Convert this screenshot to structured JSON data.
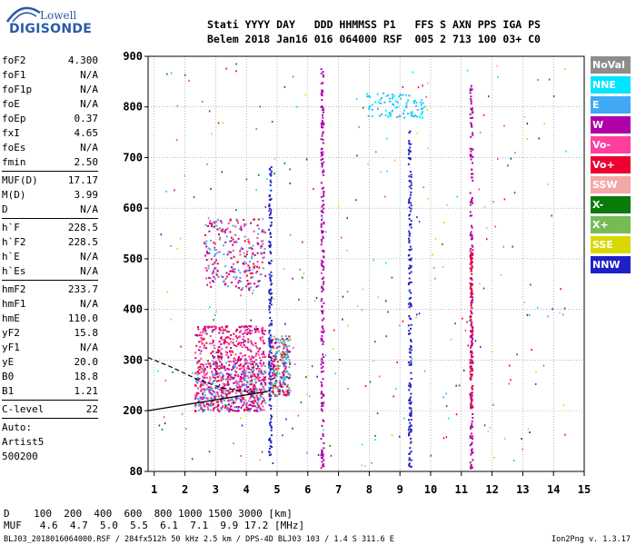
{
  "logo": {
    "lowell": "Lowell",
    "digisonde": "DIGISONDE"
  },
  "header": {
    "line1": "Stati YYYY DAY   DDD HHMMSS P1   FFS S AXN PPS IGA PS",
    "line2": "Belem 2018 Jan16 016 064000 RSF  005 2 713 100 03+ C0"
  },
  "params_group1": [
    {
      "label": "foF2",
      "value": "4.300"
    },
    {
      "label": "foF1",
      "value": "N/A"
    },
    {
      "label": "foF1p",
      "value": "N/A"
    },
    {
      "label": "foE",
      "value": "N/A"
    },
    {
      "label": "foEp",
      "value": "0.37"
    },
    {
      "label": "fxI",
      "value": "4.65"
    },
    {
      "label": "foEs",
      "value": "N/A"
    },
    {
      "label": "fmin",
      "value": "2.50"
    }
  ],
  "params_group2": [
    {
      "label": "MUF(D)",
      "value": "17.17"
    },
    {
      "label": "M(D)",
      "value": "3.99"
    },
    {
      "label": "D",
      "value": "N/A"
    }
  ],
  "params_group3": [
    {
      "label": "h`F",
      "value": "228.5"
    },
    {
      "label": "h`F2",
      "value": "228.5"
    },
    {
      "label": "h`E",
      "value": "N/A"
    },
    {
      "label": "h`Es",
      "value": "N/A"
    }
  ],
  "params_group4": [
    {
      "label": "hmF2",
      "value": "233.7"
    },
    {
      "label": "hmF1",
      "value": "N/A"
    },
    {
      "label": "hmE",
      "value": "110.0"
    },
    {
      "label": "yF2",
      "value": "15.8"
    },
    {
      "label": "yF1",
      "value": "N/A"
    },
    {
      "label": "yE",
      "value": "20.0"
    },
    {
      "label": "B0",
      "value": "18.8"
    },
    {
      "label": "B1",
      "value": "1.21"
    }
  ],
  "clevel": {
    "label": "C-level",
    "value": "22"
  },
  "auto": [
    "Auto:",
    "Artist5",
    "500200"
  ],
  "legend": [
    {
      "label": "NoVal",
      "color": "#8c8c8c"
    },
    {
      "label": "NNE",
      "color": "#00e5ff"
    },
    {
      "label": "E",
      "color": "#3fa9f5"
    },
    {
      "label": "W",
      "color": "#b000a8"
    },
    {
      "label": "Vo-",
      "color": "#ff3e9e"
    },
    {
      "label": "Vo+",
      "color": "#ee0033"
    },
    {
      "label": "SSW",
      "color": "#f4a7a7"
    },
    {
      "label": "X-",
      "color": "#0a7a0a"
    },
    {
      "label": "X+",
      "color": "#77bb55"
    },
    {
      "label": "SSE",
      "color": "#d8d800"
    },
    {
      "label": "NNW",
      "color": "#2020c8"
    }
  ],
  "chart_data": {
    "type": "scatter",
    "xlim": [
      0.8,
      15
    ],
    "ylim": [
      80,
      900
    ],
    "x_ticks": [
      "1",
      "2",
      "3",
      "4",
      "5",
      "6",
      "7",
      "8",
      "9",
      "10",
      "11",
      "12",
      "13",
      "14",
      "15"
    ],
    "y_ticks": [
      "80",
      "200",
      "300",
      "400",
      "500",
      "600",
      "700",
      "800",
      "900"
    ],
    "grid": true,
    "profile_line": [
      [
        0.8,
        200
      ],
      [
        4.7,
        238
      ]
    ],
    "profile_dashed": [
      [
        0.8,
        305
      ],
      [
        1.6,
        285
      ],
      [
        2.4,
        262
      ],
      [
        3.2,
        245
      ],
      [
        4.0,
        238
      ],
      [
        4.4,
        236
      ]
    ],
    "clusters": [
      {
        "x": [
          2.3,
          4.6
        ],
        "y": [
          200,
          300
        ],
        "colors": [
          "#ee0033",
          "#ff3e9e",
          "#b000a8",
          "#3fa9f5"
        ]
      },
      {
        "x": [
          2.3,
          4.6
        ],
        "y": [
          300,
          370
        ],
        "colors": [
          "#ee0033",
          "#ff3e9e",
          "#b000a8"
        ]
      },
      {
        "x": [
          2.6,
          4.6
        ],
        "y": [
          440,
          580
        ],
        "colors": [
          "#ee0033",
          "#b000a8",
          "#ff3e9e",
          "#3fa9f5"
        ]
      },
      {
        "x": [
          4.7,
          5.4
        ],
        "y": [
          230,
          350
        ],
        "colors": [
          "#3fa9f5",
          "#ee0033",
          "#b000a8",
          "#77bb55"
        ]
      },
      {
        "x": [
          7.9,
          9.8
        ],
        "y": [
          780,
          830
        ],
        "colors": [
          "#3fa9f5",
          "#00e5ff"
        ]
      }
    ],
    "streaks": [
      {
        "x": 4.75,
        "y": [
          110,
          690
        ],
        "color": "#2020c8"
      },
      {
        "x": 6.45,
        "y": [
          85,
          880
        ],
        "color": "#b000a8"
      },
      {
        "x": 11.3,
        "y": [
          85,
          850
        ],
        "color": "#b000a8"
      },
      {
        "x": 11.3,
        "y": [
          200,
          520
        ],
        "color": "#ee0033"
      },
      {
        "x": 9.3,
        "y": [
          85,
          760
        ],
        "color": "#2020c8"
      }
    ],
    "scatter_counts": {
      "sparse": 320
    }
  },
  "footer": {
    "d_line": "D    100  200  400  600  800 1000 1500 3000 [km]",
    "muf_line": "MUF   4.6  4.7  5.0  5.5  6.1  7.1  9.9 17.2 [MHz]",
    "info": "BLJ03_2018016064000.RSF / 284fx512h 50 kHz 2.5 km / DPS-4D BLJ03 103 / 1.4 S 311.6 E",
    "version": "Ion2Png v. 1.3.17"
  }
}
